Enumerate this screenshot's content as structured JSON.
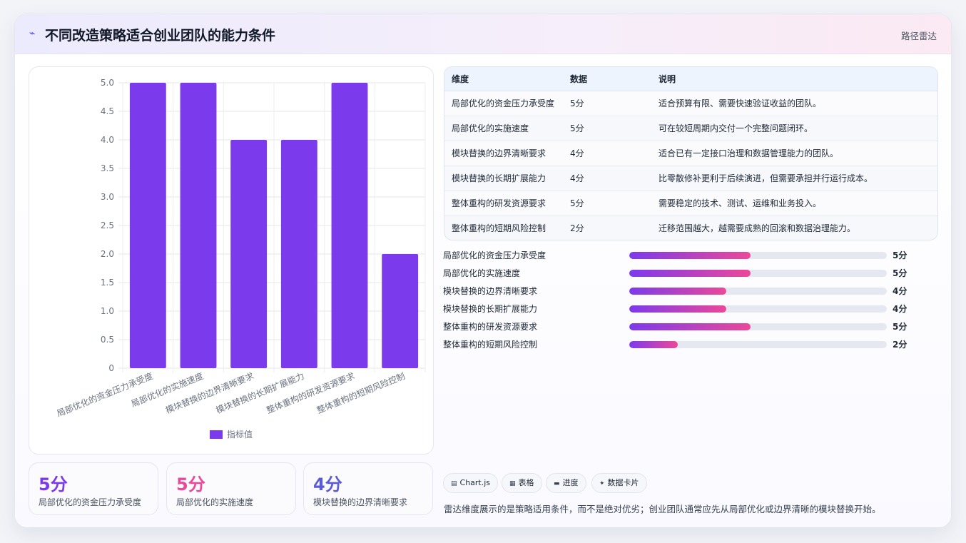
{
  "header": {
    "icon": "chart-icon",
    "title": "不同改造策略适合创业团队的能力条件",
    "tag": "路径雷达"
  },
  "colors": {
    "bar": "#7c3aed",
    "accent_pink": "#ec4899",
    "accent_blue": "#5b5bd6"
  },
  "chart_data": {
    "type": "bar",
    "categories": [
      "局部优化的资金压力承受度",
      "局部优化的实施速度",
      "模块替换的边界清晰要求",
      "模块替换的长期扩展能力",
      "整体重构的研发资源要求",
      "整体重构的短期风险控制"
    ],
    "series": [
      {
        "name": "指标值",
        "values": [
          5,
          5,
          4,
          4,
          5,
          2
        ]
      }
    ],
    "yticks": [
      "0",
      "0.5",
      "1.0",
      "1.5",
      "2.0",
      "2.5",
      "3.0",
      "3.5",
      "4.0",
      "4.5",
      "5.0"
    ],
    "ylim": [
      0,
      5
    ],
    "grid": true,
    "legend": "bottom",
    "title": "",
    "xlabel": "",
    "ylabel": ""
  },
  "kpis": [
    {
      "value": "5分",
      "label": "局部优化的资金压力承受度",
      "color": "#7c3aed"
    },
    {
      "value": "5分",
      "label": "局部优化的实施速度",
      "color": "#ec4899"
    },
    {
      "value": "4分",
      "label": "模块替换的边界清晰要求",
      "color": "#5b5bd6"
    }
  ],
  "table": {
    "headers": [
      "维度",
      "数据",
      "说明"
    ],
    "rows": [
      [
        "局部优化的资金压力承受度",
        "5分",
        "适合预算有限、需要快速验证收益的团队。"
      ],
      [
        "局部优化的实施速度",
        "5分",
        "可在较短周期内交付一个完整问题闭环。"
      ],
      [
        "模块替换的边界清晰要求",
        "4分",
        "适合已有一定接口治理和数据管理能力的团队。"
      ],
      [
        "模块替换的长期扩展能力",
        "4分",
        "比零散修补更利于后续演进，但需要承担并行运行成本。"
      ],
      [
        "整体重构的研发资源要求",
        "5分",
        "需要稳定的技术、测试、运维和业务投入。"
      ],
      [
        "整体重构的短期风险控制",
        "2分",
        "迁移范围越大，越需要成熟的回滚和数据治理能力。"
      ]
    ]
  },
  "progress": [
    {
      "name": "局部优化的资金压力承受度",
      "value": 5,
      "label": "5分",
      "max": 10.6
    },
    {
      "name": "局部优化的实施速度",
      "value": 5,
      "label": "5分",
      "max": 10.6
    },
    {
      "name": "模块替换的边界清晰要求",
      "value": 4,
      "label": "4分",
      "max": 10.6
    },
    {
      "name": "模块替换的长期扩展能力",
      "value": 4,
      "label": "4分",
      "max": 10.6
    },
    {
      "name": "整体重构的研发资源要求",
      "value": 5,
      "label": "5分",
      "max": 10.6
    },
    {
      "name": "整体重构的短期风险控制",
      "value": 2,
      "label": "2分",
      "max": 10.6
    }
  ],
  "chips": [
    {
      "icon": "▤",
      "label": "Chart.js"
    },
    {
      "icon": "▦",
      "label": "表格"
    },
    {
      "icon": "▬",
      "label": "进度"
    },
    {
      "icon": "✦",
      "label": "数据卡片"
    }
  ],
  "note": "雷达维度展示的是策略适用条件，而不是绝对优劣；创业团队通常应先从局部优化或边界清晰的模块替换开始。"
}
